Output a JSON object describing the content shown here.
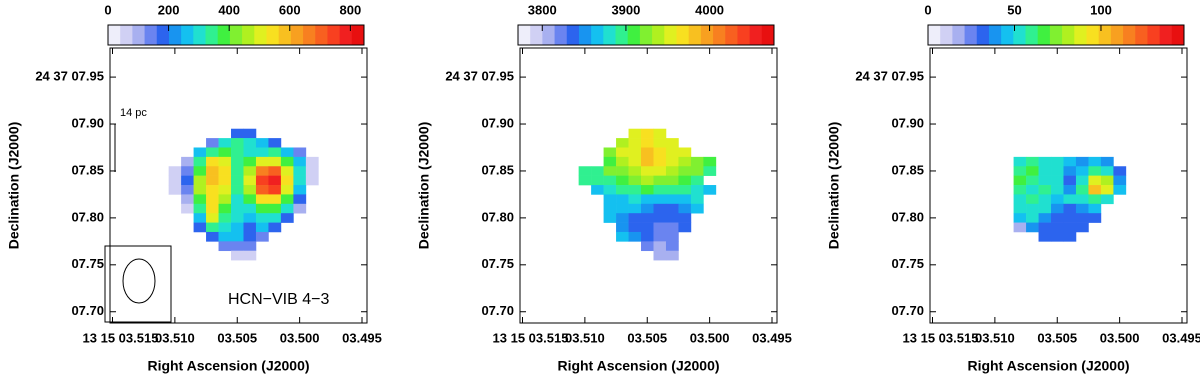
{
  "chart_data": [
    {
      "type": "heatmap",
      "x_label": "Right Ascension (J2000)",
      "y_label": "Declination (J2000)",
      "xlim": [
        3.5152,
        3.4946
      ],
      "ylim": [
        7.688,
        7.981
      ],
      "xticks": [
        {
          "value": 3.515,
          "label": "13 15 03.515"
        },
        {
          "value": 3.51,
          "label": "03.510"
        },
        {
          "value": 3.505,
          "label": "03.505"
        },
        {
          "value": 3.5,
          "label": "03.500"
        },
        {
          "value": 3.495,
          "label": "03.495"
        }
      ],
      "yticks": [
        {
          "value": 7.95,
          "label": "24 37 07.95"
        },
        {
          "value": 7.9,
          "label": "07.90"
        },
        {
          "value": 7.85,
          "label": "07.85"
        },
        {
          "value": 7.8,
          "label": "07.80"
        },
        {
          "value": 7.75,
          "label": "07.75"
        },
        {
          "value": 7.7,
          "label": "07.70"
        }
      ],
      "clim": [
        0,
        845
      ],
      "cticks": [
        0,
        200,
        400,
        600,
        800
      ],
      "annotations": [
        "14 pc",
        "HCN−VIB 4−3"
      ],
      "x": [
        3.51,
        3.509,
        3.508,
        3.507,
        3.506,
        3.505,
        3.504,
        3.503,
        3.502,
        3.501,
        3.5,
        3.499
      ],
      "y": [
        7.89,
        7.88,
        7.87,
        7.86,
        7.85,
        7.84,
        7.83,
        7.82,
        7.81,
        7.8,
        7.79,
        7.78,
        7.77,
        7.76
      ],
      "z": [
        [
          null,
          null,
          null,
          null,
          null,
          200,
          200,
          null,
          null,
          null,
          null,
          null
        ],
        [
          null,
          null,
          null,
          150,
          300,
          350,
          300,
          250,
          200,
          null,
          null,
          null
        ],
        [
          null,
          null,
          250,
          350,
          400,
          350,
          300,
          300,
          350,
          250,
          150,
          null
        ],
        [
          null,
          100,
          350,
          550,
          500,
          350,
          400,
          500,
          500,
          400,
          250,
          80
        ],
        [
          80,
          150,
          400,
          600,
          550,
          350,
          450,
          650,
          700,
          500,
          300,
          80
        ],
        [
          50,
          200,
          450,
          600,
          550,
          350,
          500,
          750,
          800,
          550,
          300,
          80
        ],
        [
          50,
          150,
          450,
          550,
          500,
          350,
          450,
          700,
          750,
          500,
          250,
          null
        ],
        [
          null,
          100,
          400,
          550,
          450,
          300,
          400,
          550,
          550,
          400,
          200,
          null
        ],
        [
          null,
          50,
          350,
          550,
          400,
          300,
          300,
          400,
          400,
          300,
          100,
          null
        ],
        [
          null,
          null,
          250,
          500,
          350,
          300,
          250,
          300,
          300,
          200,
          null,
          null
        ],
        [
          null,
          null,
          200,
          350,
          300,
          250,
          200,
          250,
          200,
          null,
          null,
          null
        ],
        [
          null,
          null,
          null,
          200,
          250,
          250,
          200,
          150,
          null,
          null,
          null,
          null
        ],
        [
          null,
          null,
          null,
          null,
          150,
          150,
          150,
          null,
          null,
          null,
          null,
          null
        ],
        [
          null,
          null,
          null,
          null,
          null,
          80,
          50,
          null,
          null,
          null,
          null,
          null
        ]
      ]
    },
    {
      "type": "heatmap",
      "x_label": "Right Ascension (J2000)",
      "y_label": "Declination (J2000)",
      "xlim": [
        3.5152,
        3.4946
      ],
      "ylim": [
        7.688,
        7.981
      ],
      "xticks": [
        {
          "value": 3.515,
          "label": "13 15 03.515"
        },
        {
          "value": 3.51,
          "label": "03.510"
        },
        {
          "value": 3.505,
          "label": "03.505"
        },
        {
          "value": 3.5,
          "label": "03.500"
        },
        {
          "value": 3.495,
          "label": "03.495"
        }
      ],
      "yticks": [
        {
          "value": 7.95,
          "label": "24 37 07.95"
        },
        {
          "value": 7.9,
          "label": "07.90"
        },
        {
          "value": 7.85,
          "label": "07.85"
        },
        {
          "value": 7.8,
          "label": "07.80"
        },
        {
          "value": 7.75,
          "label": "07.75"
        },
        {
          "value": 7.7,
          "label": "07.70"
        }
      ],
      "clim": [
        3771,
        4077
      ],
      "cticks": [
        3800,
        3900,
        4000
      ],
      "x": [
        3.51,
        3.509,
        3.508,
        3.507,
        3.506,
        3.505,
        3.504,
        3.503,
        3.502,
        3.501,
        3.5,
        3.499
      ],
      "y": [
        7.89,
        7.88,
        7.87,
        7.86,
        7.85,
        7.84,
        7.83,
        7.82,
        7.81,
        7.8,
        7.79,
        7.78,
        7.77,
        7.76
      ],
      "z": [
        [
          null,
          null,
          null,
          null,
          3950,
          3970,
          3960,
          null,
          null,
          null,
          null,
          null
        ],
        [
          null,
          null,
          null,
          3940,
          3960,
          3970,
          3960,
          3950,
          null,
          null,
          null,
          null
        ],
        [
          null,
          null,
          3920,
          3950,
          3960,
          3980,
          3970,
          3960,
          3950,
          null,
          null,
          null
        ],
        [
          null,
          null,
          3910,
          3940,
          3950,
          3975,
          3965,
          3955,
          3945,
          3930,
          3910,
          null
        ],
        [
          3900,
          3900,
          3920,
          3930,
          3940,
          3960,
          3950,
          3940,
          3930,
          3920,
          3900,
          null
        ],
        [
          3890,
          3890,
          3900,
          3910,
          3920,
          3940,
          3930,
          3920,
          3910,
          3900,
          null,
          null
        ],
        [
          null,
          3870,
          3880,
          3890,
          3900,
          3910,
          3900,
          3895,
          3890,
          3880,
          3870,
          null
        ],
        [
          null,
          null,
          3860,
          3870,
          3880,
          3870,
          3860,
          3860,
          3870,
          3880,
          null,
          null
        ],
        [
          null,
          null,
          3860,
          3860,
          3860,
          3850,
          3840,
          3840,
          3850,
          3860,
          null,
          null
        ],
        [
          null,
          null,
          3860,
          3850,
          3840,
          3830,
          3830,
          3830,
          3840,
          null,
          null,
          null
        ],
        [
          null,
          null,
          null,
          3850,
          3840,
          3830,
          3820,
          3820,
          3830,
          null,
          null,
          null
        ],
        [
          null,
          null,
          null,
          3860,
          3850,
          3830,
          3820,
          3820,
          null,
          null,
          null,
          null
        ],
        [
          null,
          null,
          null,
          null,
          null,
          3820,
          3810,
          3820,
          null,
          null,
          null,
          null
        ],
        [
          null,
          null,
          null,
          null,
          null,
          null,
          3810,
          3810,
          null,
          null,
          null,
          null
        ]
      ]
    },
    {
      "type": "heatmap",
      "x_label": "Right Ascension (J2000)",
      "y_label": "Declination (J2000)",
      "xlim": [
        3.5152,
        3.4946
      ],
      "ylim": [
        7.688,
        7.981
      ],
      "xticks": [
        {
          "value": 3.515,
          "label": "13 15 03.515"
        },
        {
          "value": 3.51,
          "label": "03.510"
        },
        {
          "value": 3.505,
          "label": "03.505"
        },
        {
          "value": 3.5,
          "label": "03.500"
        },
        {
          "value": 3.495,
          "label": "03.495"
        }
      ],
      "yticks": [
        {
          "value": 7.95,
          "label": "24 37 07.95"
        },
        {
          "value": 7.9,
          "label": "07.90"
        },
        {
          "value": 7.85,
          "label": "07.85"
        },
        {
          "value": 7.8,
          "label": "07.80"
        },
        {
          "value": 7.75,
          "label": "07.75"
        },
        {
          "value": 7.7,
          "label": "07.70"
        }
      ],
      "clim": [
        0,
        148
      ],
      "cticks": [
        0,
        50,
        100
      ],
      "x": [
        3.51,
        3.509,
        3.508,
        3.507,
        3.506,
        3.505,
        3.504,
        3.503,
        3.502,
        3.501,
        3.5,
        3.499
      ],
      "y": [
        7.89,
        7.88,
        7.87,
        7.86,
        7.85,
        7.84,
        7.83,
        7.82,
        7.81,
        7.8,
        7.79,
        7.78,
        7.77,
        7.76
      ],
      "z": [
        [
          null,
          null,
          null,
          null,
          null,
          null,
          null,
          null,
          null,
          null,
          null,
          null
        ],
        [
          null,
          null,
          null,
          null,
          null,
          null,
          null,
          null,
          null,
          null,
          null,
          null
        ],
        [
          null,
          null,
          null,
          null,
          null,
          null,
          null,
          null,
          null,
          null,
          null,
          null
        ],
        [
          null,
          null,
          50,
          60,
          55,
          50,
          45,
          40,
          45,
          40,
          null,
          null
        ],
        [
          null,
          null,
          60,
          65,
          55,
          50,
          40,
          45,
          60,
          55,
          35,
          null
        ],
        [
          null,
          null,
          65,
          60,
          55,
          50,
          30,
          55,
          90,
          80,
          40,
          null
        ],
        [
          null,
          null,
          60,
          55,
          60,
          50,
          40,
          60,
          100,
          85,
          45,
          null
        ],
        [
          null,
          null,
          55,
          60,
          55,
          45,
          50,
          50,
          60,
          50,
          null,
          null
        ],
        [
          null,
          null,
          50,
          55,
          55,
          40,
          35,
          40,
          45,
          null,
          null,
          null
        ],
        [
          null,
          null,
          45,
          50,
          40,
          30,
          30,
          30,
          35,
          null,
          null,
          null
        ],
        [
          null,
          null,
          20,
          40,
          30,
          30,
          30,
          35,
          null,
          null,
          null,
          null
        ],
        [
          null,
          null,
          null,
          null,
          30,
          30,
          30,
          null,
          null,
          null,
          null,
          null
        ],
        [
          null,
          null,
          null,
          null,
          null,
          null,
          null,
          null,
          null,
          null,
          null,
          null
        ],
        [
          null,
          null,
          null,
          null,
          null,
          null,
          null,
          null,
          null,
          null,
          null,
          null
        ]
      ]
    }
  ],
  "colormap": [
    "#eeeefa",
    "#d0d0f4",
    "#a8b0f0",
    "#6a84f0",
    "#2c64ee",
    "#1894f0",
    "#14c0f0",
    "#20e0d0",
    "#30f090",
    "#40f040",
    "#80f030",
    "#b0f020",
    "#e0f020",
    "#f8e020",
    "#f8c020",
    "#f8a020",
    "#f88020",
    "#f86020",
    "#f84020",
    "#f02020",
    "#e81010"
  ]
}
